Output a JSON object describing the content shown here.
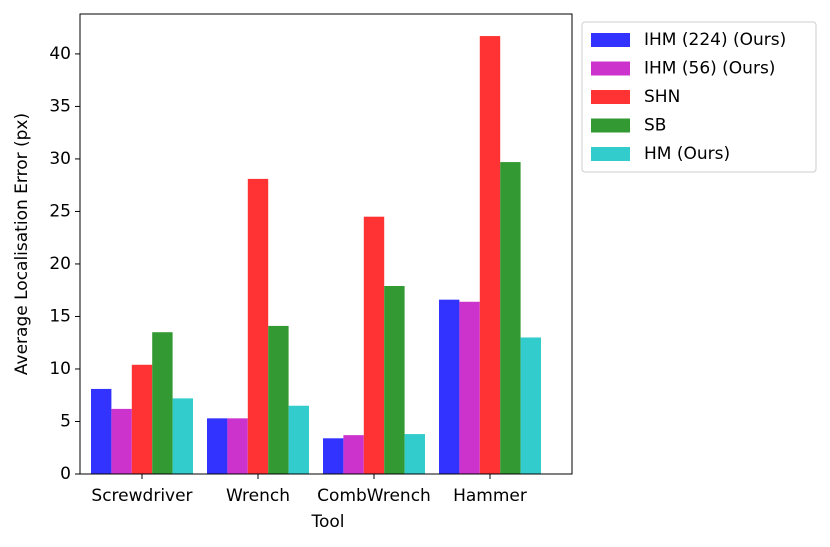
{
  "chart_data": {
    "type": "bar",
    "x_label": "Tool",
    "y_label": "Average Localisation Error (px)",
    "categories": [
      "Screwdriver",
      "Wrench",
      "CombWrench",
      "Hammer"
    ],
    "series": [
      {
        "name": "IHM (224) (Ours)",
        "color": "#3333ff",
        "values": [
          8.1,
          5.3,
          3.4,
          16.6
        ]
      },
      {
        "name": "IHM (56) (Ours)",
        "color": "#cc33cc",
        "values": [
          6.2,
          5.3,
          3.7,
          16.4
        ]
      },
      {
        "name": "SHN",
        "color": "#ff3333",
        "values": [
          10.4,
          28.1,
          24.5,
          41.7
        ]
      },
      {
        "name": "SB",
        "color": "#339933",
        "values": [
          13.5,
          14.1,
          17.9,
          29.7
        ]
      },
      {
        "name": "HM (Ours)",
        "color": "#33cccc",
        "values": [
          7.2,
          6.5,
          3.8,
          13.0
        ]
      }
    ],
    "ylim": [
      0,
      43.8
    ],
    "yticks": [
      0,
      5,
      10,
      15,
      20,
      25,
      30,
      35,
      40
    ],
    "legend": "outside-upper-right"
  }
}
